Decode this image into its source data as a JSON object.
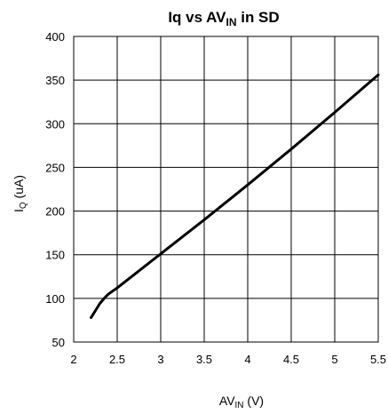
{
  "chart_data": {
    "type": "line",
    "title": {
      "main": "Iq vs AV",
      "sub": "IN",
      "tail": " in SD"
    },
    "xlabel": {
      "main": "AV",
      "sub": "IN",
      "tail": " (V)"
    },
    "ylabel": {
      "main": "I",
      "sub": "Q",
      "tail": " (uA)"
    },
    "xlim": [
      2,
      5.5
    ],
    "ylim": [
      50,
      400
    ],
    "xticks": [
      "2",
      "2.5",
      "3",
      "3.5",
      "4",
      "4.5",
      "5",
      "5.5"
    ],
    "xtick_values": [
      2,
      2.5,
      3,
      3.5,
      4,
      4.5,
      5,
      5.5
    ],
    "yticks": [
      "50",
      "100",
      "150",
      "200",
      "250",
      "300",
      "350",
      "400"
    ],
    "ytick_values": [
      50,
      100,
      150,
      200,
      250,
      300,
      350,
      400
    ],
    "grid": true,
    "series": [
      {
        "x": [
          2.2,
          2.25,
          2.3,
          2.35,
          2.4,
          2.5,
          3.0,
          3.5,
          4.0,
          4.5,
          5.0,
          5.5
        ],
        "y": [
          78,
          86,
          94,
          100,
          105,
          112,
          151,
          190,
          230,
          271,
          313,
          356
        ]
      }
    ],
    "line_color": "#000000"
  }
}
